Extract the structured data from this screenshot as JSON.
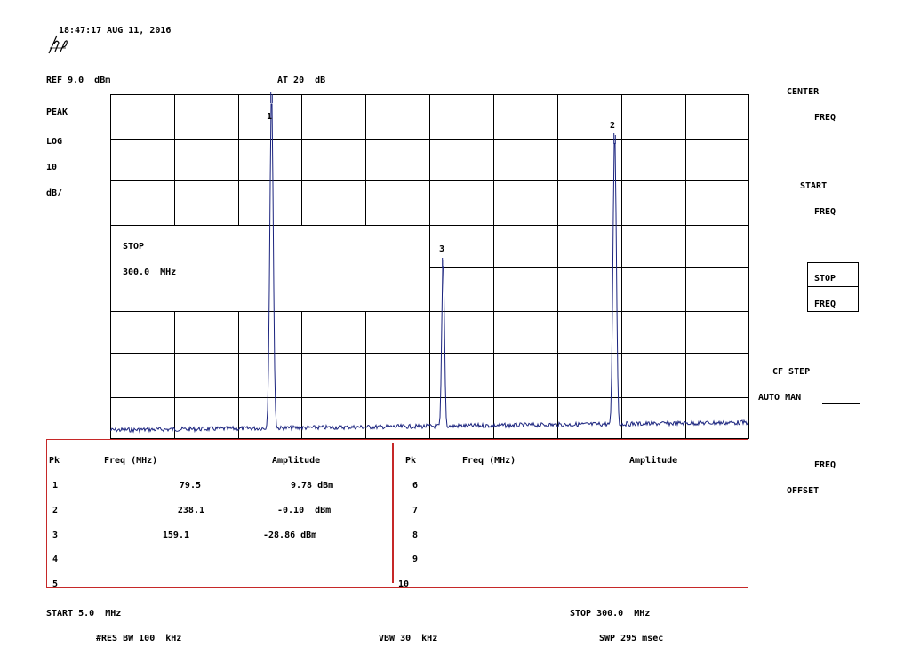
{
  "header": {
    "timestamp": "18:47:17 AUG 11, 2016",
    "ref_level": "REF 9.0  dBm",
    "attenuation": "AT 20  dB",
    "detector": "PEAK",
    "scale_type": "LOG",
    "scale_value": "10",
    "scale_unit": "dB/"
  },
  "active_function": {
    "label": "STOP",
    "value": "300.0  MHz"
  },
  "markers": [
    {
      "label": "1"
    },
    {
      "label": "2"
    },
    {
      "label": "3"
    }
  ],
  "softkeys": {
    "center_freq": [
      "CENTER",
      "FREQ"
    ],
    "start_freq": [
      "START",
      "FREQ"
    ],
    "stop_freq": [
      "STOP",
      "FREQ"
    ],
    "cf_step": [
      "CF STEP",
      "AUTO MAN"
    ],
    "freq_offset": [
      "FREQ",
      "OFFSET"
    ]
  },
  "peak_table": {
    "headers": {
      "pk": "Pk",
      "freq": "Freq (MHz)",
      "amplitude": "Amplitude"
    },
    "left_rows": [
      {
        "pk": "1",
        "freq": "79.5",
        "amp": "9.78 dBm"
      },
      {
        "pk": "2",
        "freq": "238.1",
        "amp": "-0.10  dBm"
      },
      {
        "pk": "3",
        "freq": "159.1",
        "amp": "-28.86 dBm"
      },
      {
        "pk": "4",
        "freq": "",
        "amp": ""
      },
      {
        "pk": "5",
        "freq": "",
        "amp": ""
      }
    ],
    "right_rows": [
      {
        "pk": "6"
      },
      {
        "pk": "7"
      },
      {
        "pk": "8"
      },
      {
        "pk": "9"
      },
      {
        "pk": "10"
      }
    ]
  },
  "footer": {
    "start": "START 5.0  MHz",
    "stop": "STOP 300.0  MHz",
    "rbw": "#RES BW 100  kHz",
    "vbw": "VBW 30  kHz",
    "sweep": "SWP 295 msec"
  },
  "colors": {
    "trace": "#1a237e",
    "table_border": "#c62828",
    "grid": "#000000"
  }
}
